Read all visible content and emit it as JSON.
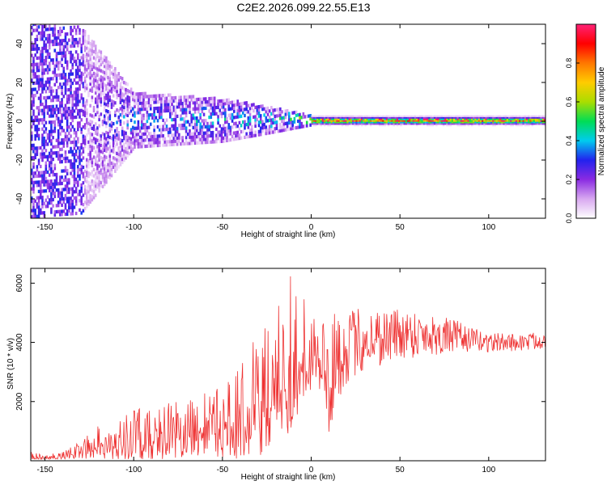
{
  "title": "C2E2.2026.099.22.55.E13",
  "chart_data": [
    {
      "type": "heatmap",
      "xlabel": "Height of straight line (km)",
      "ylabel": "Frequency (Hz)",
      "xlim": [
        -158,
        132
      ],
      "ylim": [
        -50,
        50
      ],
      "xticks": [
        -150,
        -100,
        -50,
        0,
        50,
        100
      ],
      "yticks": [
        -40,
        -20,
        0,
        20,
        40
      ],
      "xtick_labels": [
        "-150",
        "-100",
        "-50",
        "0",
        "50",
        "100"
      ],
      "ytick_labels": [
        "-40",
        "-20",
        "0",
        "20",
        "40"
      ],
      "colorbar": {
        "label": "Normalized spectral amplitude",
        "range": [
          0,
          1
        ],
        "ticks": [
          0,
          0.2,
          0.4,
          0.6,
          0.8
        ],
        "tick_labels": [
          "0.0",
          "0.2",
          "0.4",
          "0.6",
          "0.8"
        ],
        "colors": [
          "#ffffff",
          "#d8a8f0",
          "#8a2be2",
          "#2222ee",
          "#00ccee",
          "#00dd55",
          "#aadd00",
          "#ffcc00",
          "#ff7700",
          "#ff0000",
          "#ff2277"
        ]
      },
      "description_bands": {
        "x_km": [
          -158,
          -130,
          -100,
          -50,
          -20,
          0,
          50,
          100,
          132
        ],
        "energy_halfwidth_hz": [
          50,
          48,
          14,
          11,
          6,
          2.5,
          2.5,
          2.5,
          2.5
        ],
        "peak_amplitude": [
          0.2,
          0.25,
          0.45,
          0.5,
          0.6,
          0.9,
          0.9,
          0.9,
          0.9
        ]
      }
    },
    {
      "type": "line",
      "xlabel": "Height of straight line (km)",
      "ylabel": "SNR (10 * v/v)",
      "xlim": [
        -158,
        132
      ],
      "ylim": [
        0,
        6500
      ],
      "xticks": [
        -150,
        -100,
        -50,
        0,
        50,
        100
      ],
      "yticks": [
        2000,
        4000,
        6000
      ],
      "xtick_labels": [
        "-150",
        "-100",
        "-50",
        "0",
        "50",
        "100"
      ],
      "ytick_labels": [
        "2000",
        "4000",
        "6000"
      ],
      "color": "#ee3333",
      "envelope": {
        "x": [
          -158,
          -150,
          -140,
          -130,
          -120,
          -110,
          -100,
          -90,
          -80,
          -70,
          -60,
          -50,
          -45,
          -40,
          -35,
          -30,
          -25,
          -20,
          -15,
          -12,
          -10,
          -5,
          0,
          5,
          8,
          10,
          12,
          15,
          20,
          25,
          30,
          40,
          50,
          60,
          70,
          80,
          90,
          100,
          110,
          120,
          132
        ],
        "mean": [
          150,
          150,
          200,
          350,
          600,
          750,
          850,
          950,
          1050,
          1100,
          1200,
          1300,
          1400,
          1600,
          2000,
          2200,
          2500,
          3000,
          3300,
          3600,
          3400,
          3700,
          3900,
          3800,
          3000,
          2000,
          3200,
          3500,
          3800,
          4000,
          4100,
          4200,
          4300,
          4300,
          4250,
          4200,
          4100,
          4000,
          4000,
          4000,
          4100
        ],
        "spread": [
          150,
          120,
          150,
          300,
          600,
          800,
          900,
          1000,
          1000,
          1000,
          1100,
          1200,
          1400,
          1600,
          2000,
          2200,
          2200,
          2200,
          2400,
          2800,
          2200,
          1800,
          1500,
          1500,
          2000,
          2200,
          1800,
          1500,
          1200,
          1200,
          1100,
          1000,
          900,
          800,
          700,
          600,
          400,
          350,
          300,
          300,
          300
        ]
      }
    }
  ]
}
